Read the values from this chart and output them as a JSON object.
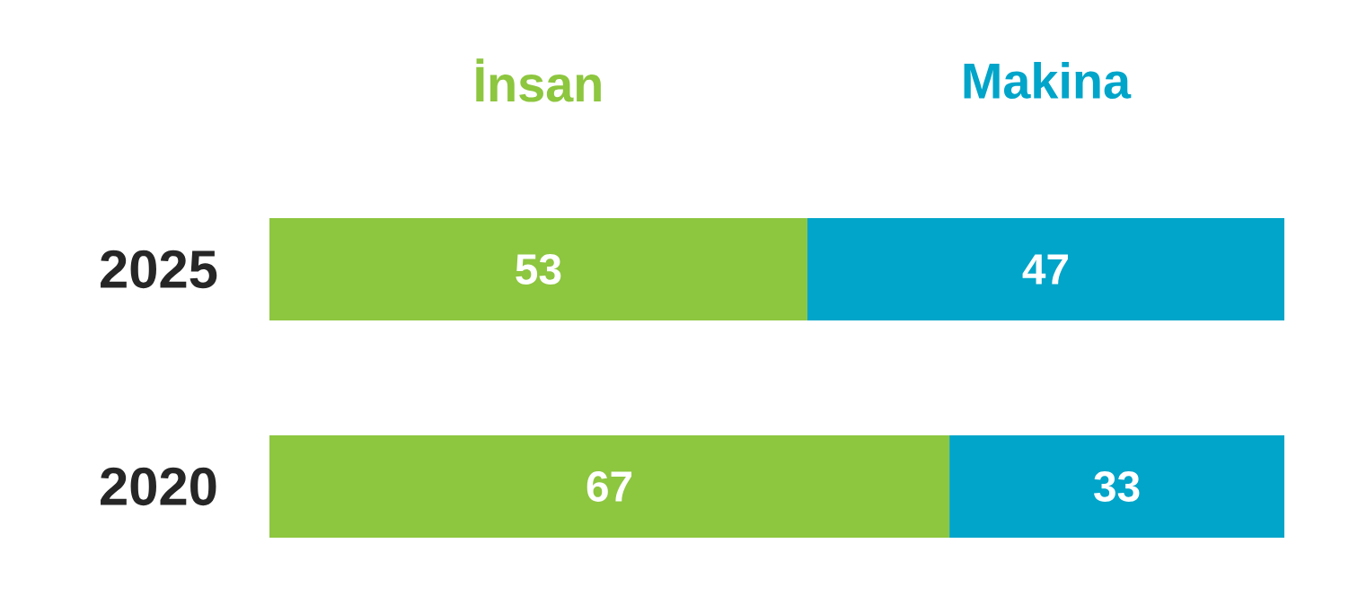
{
  "chart_data": {
    "type": "bar",
    "orientation": "horizontal",
    "stacked": true,
    "categories": [
      "2025",
      "2020"
    ],
    "series": [
      {
        "name": "İnsan",
        "color": "#8dc63f",
        "values": [
          53,
          67
        ]
      },
      {
        "name": "Makina",
        "color": "#00a5c9",
        "values": [
          47,
          33
        ]
      }
    ],
    "tick_labels": "y",
    "data_labels": true,
    "legend": "top"
  }
}
